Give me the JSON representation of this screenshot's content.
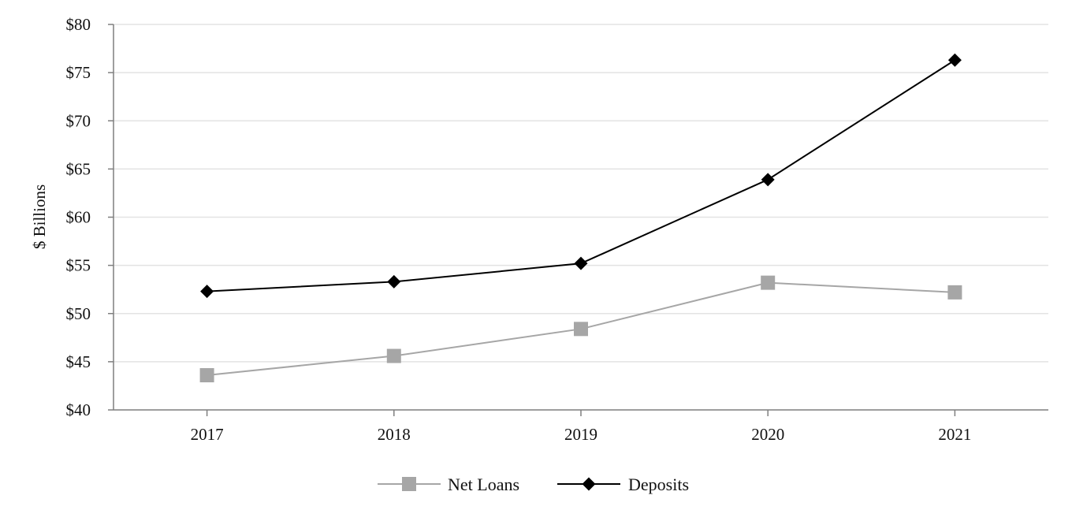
{
  "chart_data": {
    "type": "line",
    "title": "",
    "xlabel": "",
    "ylabel": "$ Billions",
    "categories": [
      "2017",
      "2018",
      "2019",
      "2020",
      "2021"
    ],
    "ylim": [
      40,
      80
    ],
    "ytick_values": [
      40,
      45,
      50,
      55,
      60,
      65,
      70,
      75,
      80
    ],
    "ytick_labels": [
      "$40",
      "$45",
      "$50",
      "$55",
      "$60",
      "$65",
      "$70",
      "$75",
      "$80"
    ],
    "grid": true,
    "legend_position": "bottom-center",
    "series": [
      {
        "name": "Net Loans",
        "values": [
          43.6,
          45.6,
          48.4,
          53.2,
          52.2
        ],
        "color": "#a6a6a6",
        "marker": "square"
      },
      {
        "name": "Deposits",
        "values": [
          52.3,
          53.3,
          55.2,
          63.9,
          76.3
        ],
        "color": "#000000",
        "marker": "diamond"
      }
    ]
  }
}
